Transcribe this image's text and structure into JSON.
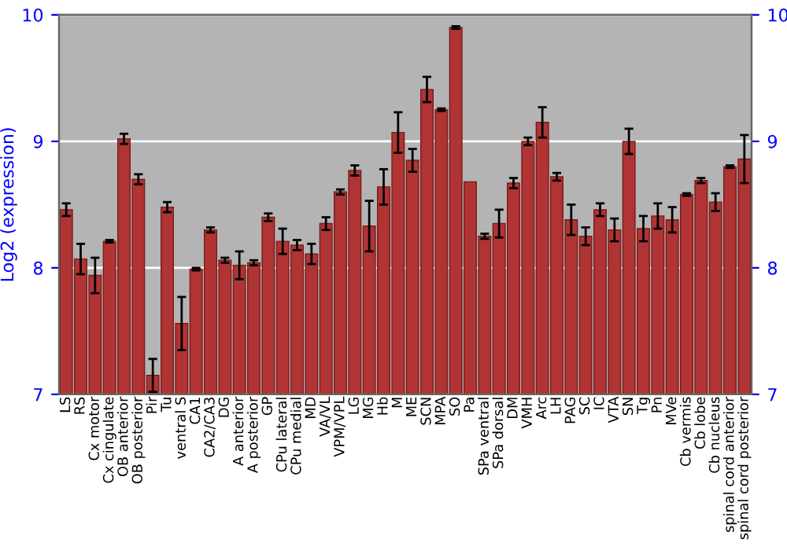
{
  "chart_data": {
    "type": "bar",
    "ylabel": "Log2 (expression)",
    "categories": [
      "LS",
      "RS",
      "Cx motor",
      "Cx cingulate",
      "OB anterior",
      "OB posterior",
      "Pir",
      "Tu",
      "ventral S",
      "CA1",
      "CA2/CA3",
      "DG",
      "A anterior",
      "A posterior",
      "GP",
      "CPu lateral",
      "CPu medial",
      "MD",
      "VA/VL",
      "VPM/VPL",
      "LG",
      "MG",
      "Hb",
      "M",
      "ME",
      "SCN",
      "MPA",
      "SO",
      "Pa",
      "SPa ventral",
      "SPa dorsal",
      "DM",
      "VMH",
      "Arc",
      "LH",
      "PAG",
      "SC",
      "IC",
      "VTA",
      "SN",
      "Tg",
      "Pn",
      "MVe",
      "Cb vermis",
      "Cb lobe",
      "Cb nucleus",
      "spinal cord anterior",
      "spinal cord posterior"
    ],
    "values": [
      8.46,
      8.07,
      7.94,
      8.21,
      9.02,
      8.7,
      7.15,
      8.48,
      7.56,
      7.99,
      8.3,
      8.06,
      8.02,
      8.04,
      8.4,
      8.21,
      8.18,
      8.11,
      8.35,
      8.6,
      8.77,
      8.33,
      8.64,
      9.07,
      8.85,
      9.41,
      9.25,
      9.9,
      8.68,
      8.25,
      8.35,
      8.67,
      9.0,
      9.15,
      8.72,
      8.38,
      8.25,
      8.46,
      8.3,
      9.0,
      8.31,
      8.41,
      8.38,
      8.58,
      8.69,
      8.52,
      8.8,
      8.86
    ],
    "errors": [
      0.05,
      0.12,
      0.14,
      0.01,
      0.04,
      0.04,
      0.13,
      0.04,
      0.21,
      0.01,
      0.02,
      0.02,
      0.11,
      0.02,
      0.03,
      0.1,
      0.04,
      0.08,
      0.05,
      0.02,
      0.04,
      0.2,
      0.14,
      0.16,
      0.09,
      0.1,
      0.01,
      0.01,
      null,
      0.02,
      0.11,
      0.04,
      0.03,
      0.12,
      0.03,
      0.12,
      0.07,
      0.05,
      0.09,
      0.1,
      0.1,
      0.1,
      0.1,
      0.01,
      0.02,
      0.07,
      0.01,
      0.19
    ],
    "color": "#b03434",
    "ylim": [
      7,
      10
    ],
    "yticks": [
      7,
      8,
      9,
      10
    ],
    "y2lim": [
      7,
      10
    ],
    "y2ticks": [
      7,
      8,
      9,
      10
    ],
    "grid": "y"
  }
}
